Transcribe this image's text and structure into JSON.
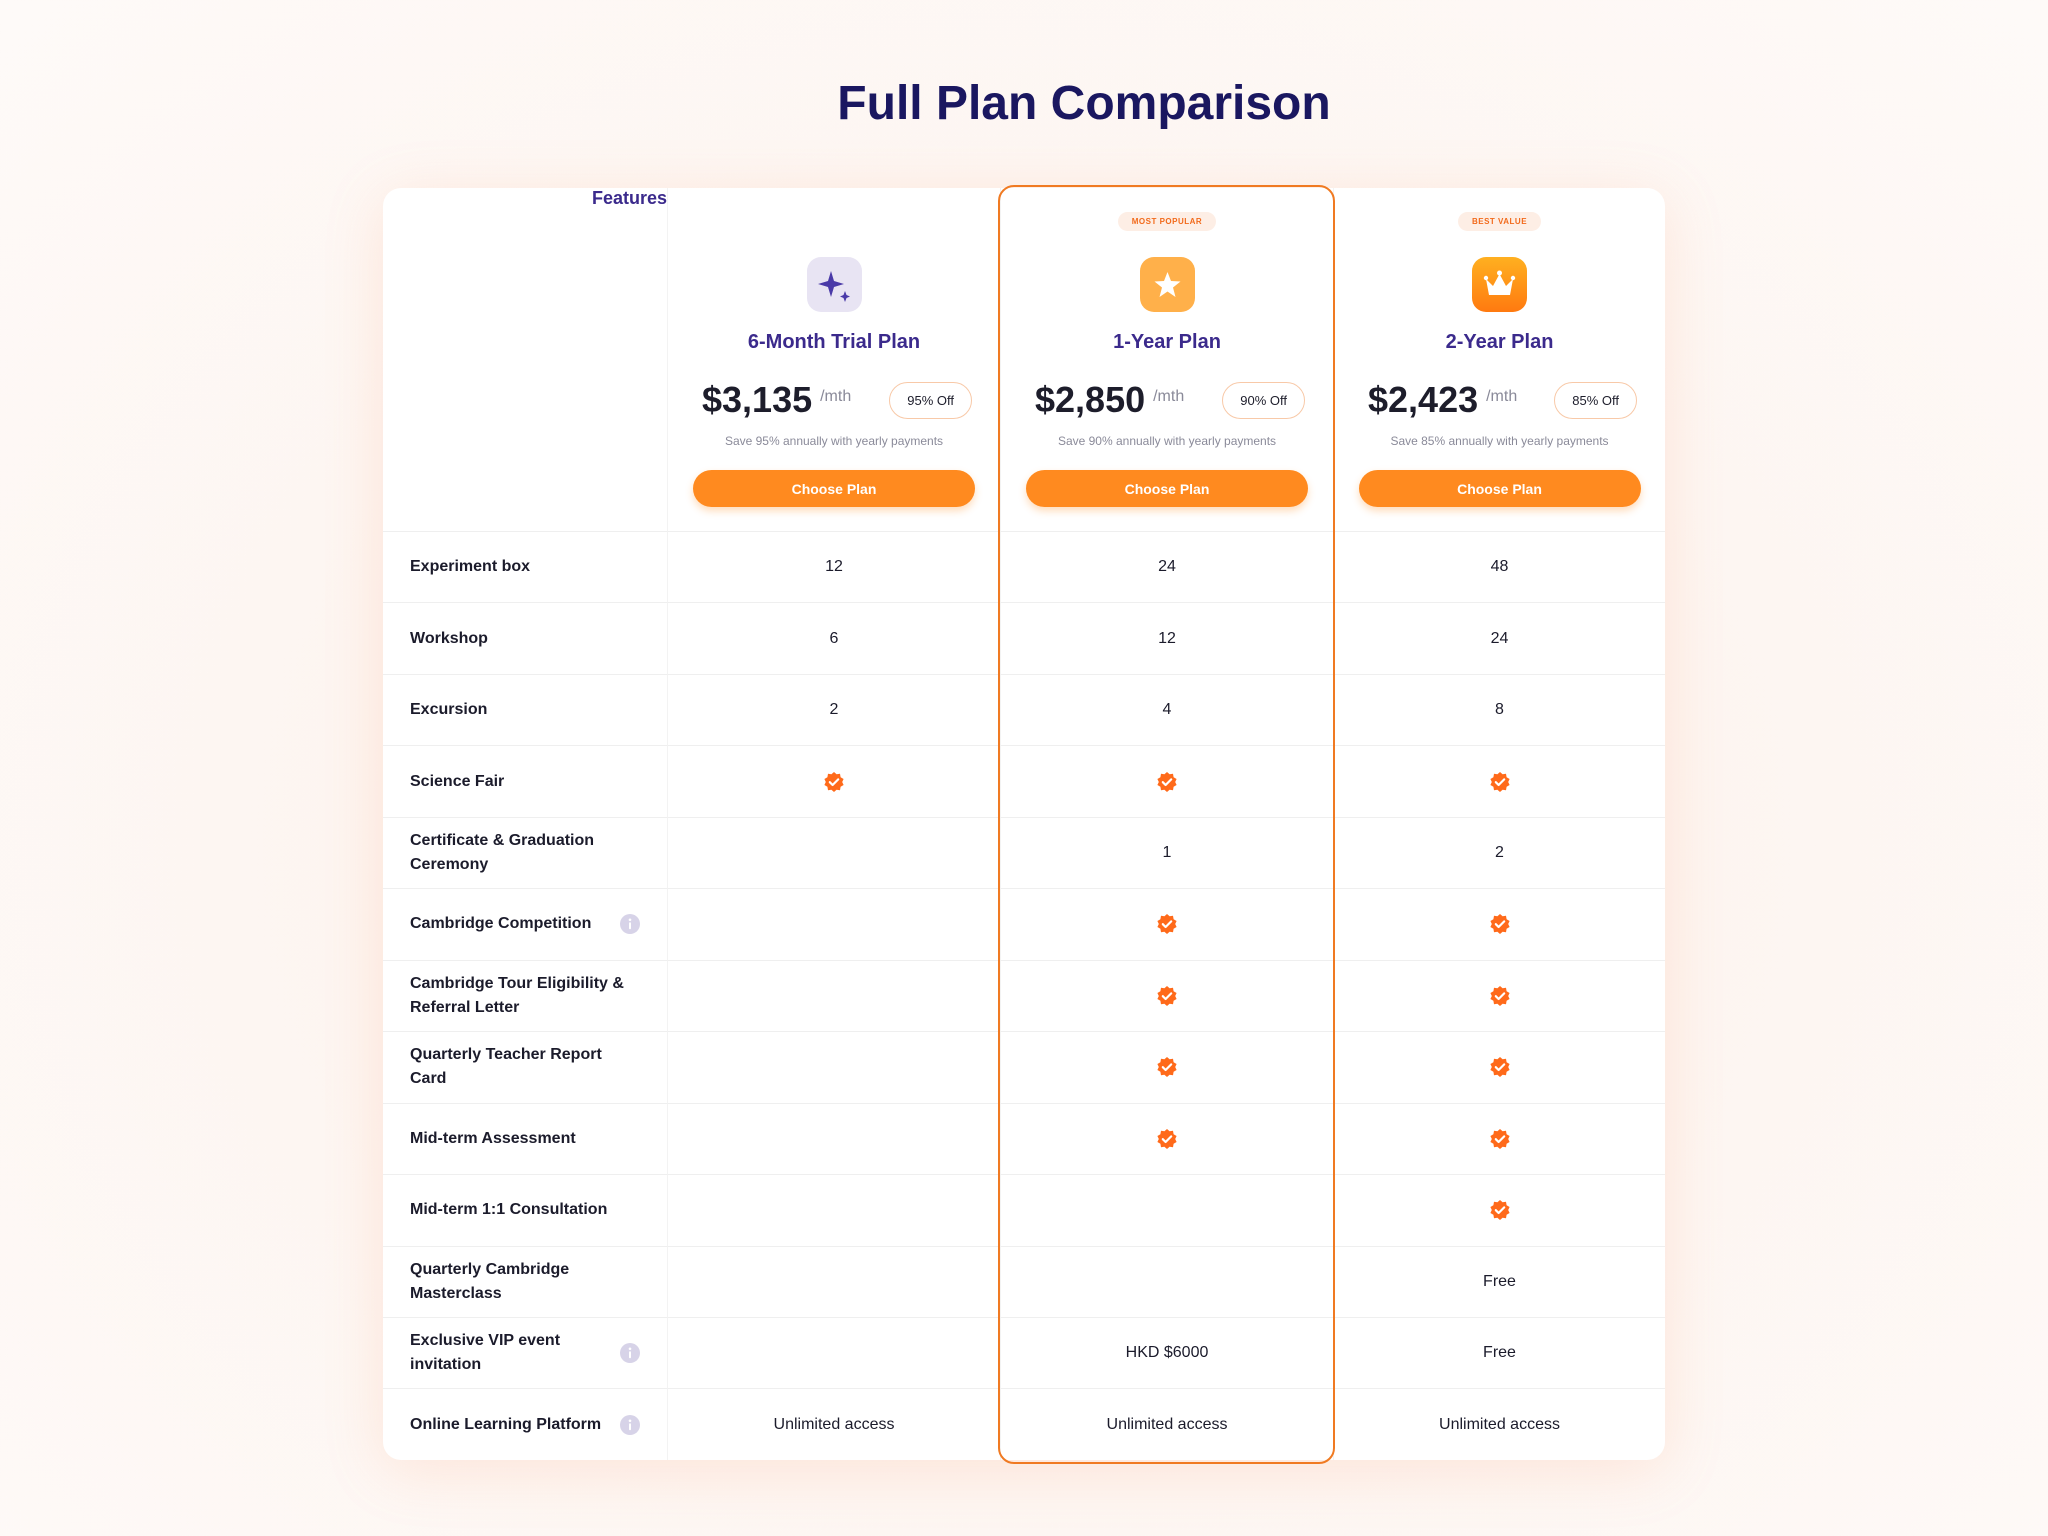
{
  "title": "Full Plan Comparison",
  "features_header": "Features",
  "plans": [
    {
      "name": "6-Month Trial Plan",
      "price": "$3,135",
      "unit": "/mth",
      "discount": "95% Off",
      "note": "Save 95% annually with yearly payments",
      "button": "Choose Plan"
    },
    {
      "badge": "MOST POPULAR",
      "highlighted": true,
      "name": "1-Year Plan",
      "price": "$2,850",
      "unit": "/mth",
      "discount": "90% Off",
      "note": "Save 90% annually with yearly payments",
      "button": "Choose Plan"
    },
    {
      "badge": "BEST VALUE",
      "name": "2-Year Plan",
      "price": "$2,423",
      "unit": "/mth",
      "discount": "85% Off",
      "note": "Save 85% annually with yearly payments",
      "button": "Choose Plan"
    }
  ],
  "rows": [
    {
      "label": "Experiment box",
      "values": [
        12,
        24,
        48
      ]
    },
    {
      "label": "Workshop",
      "values": [
        6,
        12,
        24
      ]
    },
    {
      "label": "Excursion",
      "values": [
        2,
        4,
        8
      ]
    },
    {
      "label": "Science Fair",
      "values": [
        true,
        true,
        true
      ]
    },
    {
      "label": "Certificate & Graduation Ceremony",
      "values": [
        null,
        1,
        2
      ]
    },
    {
      "label": "Cambridge Competition",
      "info": true,
      "values": [
        null,
        true,
        true
      ]
    },
    {
      "label": "Cambridge Tour Eligibility & Referral Letter",
      "values": [
        null,
        true,
        true
      ]
    },
    {
      "label": "Quarterly Teacher Report Card",
      "values": [
        null,
        true,
        true
      ]
    },
    {
      "label": "Mid-term Assessment",
      "values": [
        null,
        true,
        true
      ]
    },
    {
      "label": "Mid-term 1:1 Consultation",
      "values": [
        null,
        null,
        true
      ]
    },
    {
      "label": "Quarterly Cambridge Masterclass",
      "values": [
        null,
        null,
        "Free"
      ]
    },
    {
      "label": "Exclusive VIP event invitation",
      "info": true,
      "values": [
        null,
        "HKD $6000",
        "Free"
      ]
    },
    {
      "label": "Online Learning Platform",
      "info": true,
      "values": [
        "Unlimited access",
        "Unlimited access",
        "Unlimited access"
      ]
    }
  ]
}
